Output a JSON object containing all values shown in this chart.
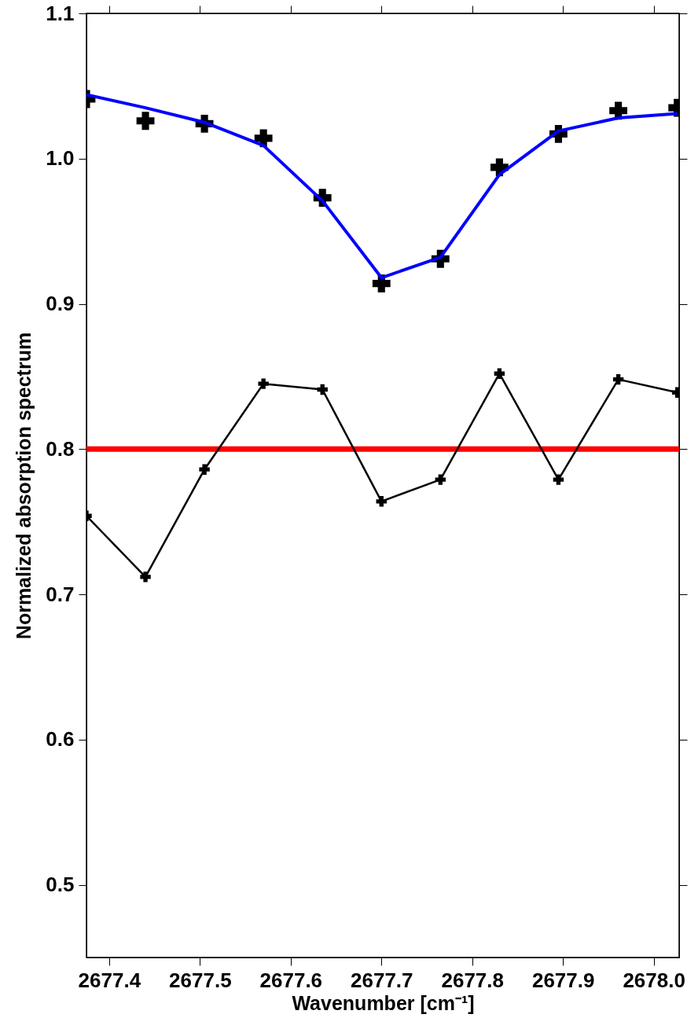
{
  "chart_data": {
    "type": "line",
    "xlabel": "Wavenumber [cm⁻¹]",
    "ylabel": "Normalized absorption spectrum",
    "x": [
      2677.375,
      2677.44,
      2677.505,
      2677.57,
      2677.635,
      2677.7,
      2677.765,
      2677.83,
      2677.895,
      2677.961,
      2678.026
    ],
    "series": [
      {
        "color": "#0000ff",
        "marker": "none",
        "values": [
          1.044,
          1.035,
          1.025,
          1.009,
          0.971,
          0.918,
          0.932,
          0.989,
          1.019,
          1.028,
          1.031
        ]
      },
      {
        "type": "scatter",
        "color": "#000000",
        "marker": "cross",
        "values": [
          1.041,
          1.026,
          1.024,
          1.014,
          0.973,
          0.914,
          0.931,
          0.994,
          1.017,
          1.033,
          1.035
        ]
      },
      {
        "color": "#000000",
        "marker": "cross",
        "values": [
          0.754,
          0.712,
          0.786,
          0.845,
          0.841,
          0.764,
          0.779,
          0.852,
          0.779,
          0.848,
          0.839
        ]
      }
    ],
    "ref_lines": [
      {
        "axis": "y",
        "value": 0.8,
        "color": "#ff0000"
      }
    ],
    "xlim": [
      2677.375,
      2678.028
    ],
    "xticks": [
      {
        "value": 2677.4,
        "label": "2677.4"
      },
      {
        "value": 2677.5,
        "label": "2677.5"
      },
      {
        "value": 2677.6,
        "label": "2677.6"
      },
      {
        "value": 2677.7,
        "label": "2677.7"
      },
      {
        "value": 2677.8,
        "label": "2677.8"
      },
      {
        "value": 2677.9,
        "label": "2677.9"
      },
      {
        "value": 2678.0,
        "label": "2678.0"
      }
    ],
    "ylim": [
      0.45,
      1.1
    ],
    "yticks": [
      {
        "value": 0.5,
        "label": "0.5"
      },
      {
        "value": 0.6,
        "label": "0.6"
      },
      {
        "value": 0.7,
        "label": "0.7"
      },
      {
        "value": 0.8,
        "label": "0.8"
      },
      {
        "value": 0.9,
        "label": "0.9"
      },
      {
        "value": 1.0,
        "label": "1.0"
      },
      {
        "value": 1.1,
        "label": "1.1"
      }
    ],
    "grid": false
  }
}
